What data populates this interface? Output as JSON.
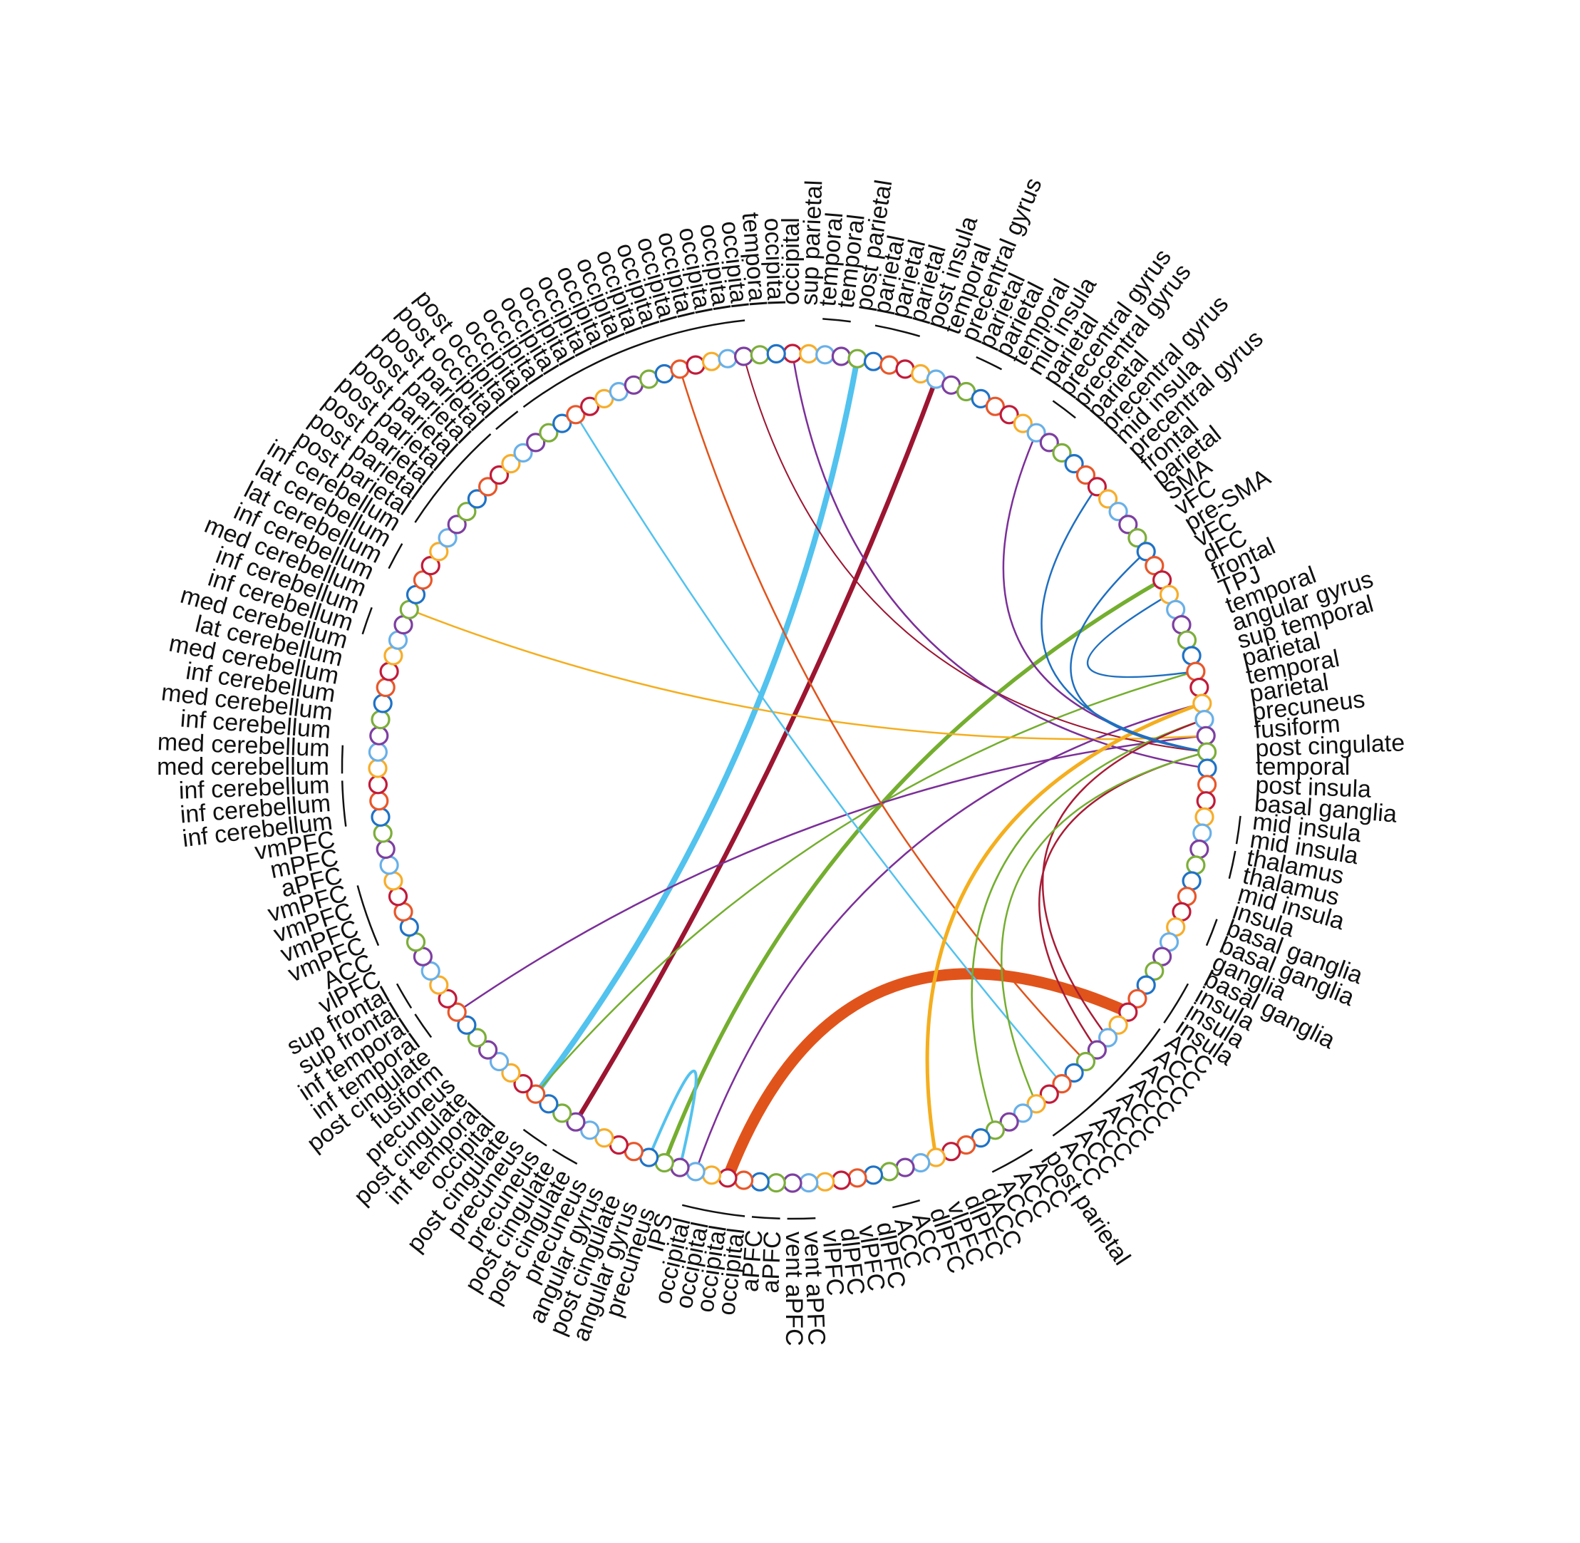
{
  "colors": {
    "node_palette": [
      "#c01b3a",
      "#f7ad2a",
      "#69b0e8",
      "#7d3fa0",
      "#7cae3a",
      "#1f72c6",
      "#e8572a"
    ],
    "link": {
      "cyan": "#52c2ee",
      "darkred": "#9c1531",
      "green": "#74ae2f",
      "orange": "#e0541b",
      "purple": "#7b2f98",
      "yellow": "#f4ae1e",
      "blue": "#1f6fc0",
      "red": "#a71c35"
    }
  },
  "diagram": {
    "type": "circular connectogram",
    "node_count": 160,
    "regions_clockwise_from_top": [
      "occipital",
      "sup parietal",
      "temporal",
      "temporal",
      "post parietal",
      "parietal",
      "parietal",
      "parietal",
      "post insula",
      "temporal",
      "precentral gyrus",
      "parietal",
      "parietal",
      "temporal",
      "mid insula",
      "parietal",
      "precentral gyrus",
      "precentral gyrus",
      "parietal",
      "precentral gyrus",
      "mid insula",
      "precentral gyrus",
      "frontal",
      "parietal",
      "SMA",
      "vFC",
      "pre-SMA",
      "vFC",
      "dFC",
      "frontal",
      "TPJ",
      "temporal",
      "angular gyrus",
      "sup temporal",
      "parietal",
      "temporal",
      "parietal",
      "precuneus",
      "fusiform",
      "post cingulate",
      "temporal",
      "post insula",
      "basal ganglia",
      "mid insula",
      "mid insula",
      "thalamus",
      "thalamus",
      "mid insula",
      "insula",
      "basal ganglia",
      "basal ganglia",
      "ganglia",
      "basal ganglia",
      "insula",
      "insula",
      "insula",
      "ACC",
      "ACC",
      "ACC",
      "ACC",
      "ACC",
      "ACC",
      "ACC",
      "ACC",
      "ACC",
      "post parietal",
      "ACC",
      "ACC",
      "ACC",
      "dACC",
      "dlPFC",
      "vlPFC",
      "dlPFC",
      "ACC",
      "ACC",
      "dlPFC",
      "vlPFC",
      "dlPFC",
      "vlPFC",
      "vent aPFC",
      "vent aPFC",
      "aPFC",
      "aPFC",
      "occipital",
      "occipital",
      "occipital",
      "occipital",
      "IPS",
      "precuneus",
      "angular gyrus",
      "post cingulate",
      "angular gyrus",
      "precuneus",
      "post cingulate",
      "post cingulate",
      "precuneus",
      "precuneus",
      "post cingulate",
      "occipital",
      "inf temporal",
      "post cingulate",
      "precuneus",
      "fusiform",
      "post cingulate",
      "inf temporal",
      "inf temporal",
      "sup frontal",
      "sup frontal",
      "vlPFC",
      "ACC",
      "vmPFC",
      "vmPFC",
      "vmPFC",
      "vmPFC",
      "aPFC",
      "mPFC",
      "vmPFC",
      "inf cerebellum",
      "inf cerebellum",
      "inf cerebellum",
      "med cerebellum",
      "med cerebellum",
      "inf cerebellum",
      "med cerebellum",
      "inf cerebellum",
      "med cerebellum",
      "lat cerebellum",
      "med cerebellum",
      "inf cerebellum",
      "inf cerebellum",
      "med cerebellum",
      "inf cerebellum",
      "lat cerebellum",
      "lat cerebellum",
      "inf cerebellum",
      "post parietal",
      "post parietal",
      "post parietal",
      "post parietal",
      "post parietal",
      "post parietal",
      "post parietal",
      "post occipital",
      "post occipital",
      "occipital",
      "occipital",
      "occipital",
      "occipital",
      "occipital",
      "occipital",
      "occipital",
      "occipital",
      "occipital",
      "occipital",
      "occipital",
      "occipital",
      "occipital",
      "occipital",
      "temporal",
      "occipital"
    ]
  },
  "links": [
    {
      "from": 56,
      "to": 84,
      "weight": 16,
      "color": "orange"
    },
    {
      "from": 4,
      "to": 97,
      "weight": 8,
      "color": "cyan"
    },
    {
      "from": 9,
      "to": 94,
      "weight": 6.5,
      "color": "darkred"
    },
    {
      "from": 28,
      "to": 88,
      "weight": 5.5,
      "color": "green"
    },
    {
      "from": 89,
      "to": 87,
      "weight": 4,
      "color": "cyan"
    },
    {
      "from": 34,
      "to": 97,
      "weight": 2.5,
      "color": "green"
    },
    {
      "from": 36,
      "to": 86,
      "weight": 2.5,
      "color": "purple"
    },
    {
      "from": 38,
      "to": 104,
      "weight": 2.5,
      "color": "purple"
    },
    {
      "from": 38,
      "to": 130,
      "weight": 2.5,
      "color": "yellow"
    },
    {
      "from": 39,
      "to": 157,
      "weight": 2,
      "color": "darkred"
    },
    {
      "from": 153,
      "to": 60,
      "weight": 2.5,
      "color": "orange"
    },
    {
      "from": 146,
      "to": 62,
      "weight": 2.5,
      "color": "cyan"
    },
    {
      "from": 40,
      "to": 0,
      "weight": 2.5,
      "color": "purple"
    },
    {
      "from": 37,
      "to": 67,
      "weight": 2.5,
      "color": "green"
    },
    {
      "from": 36,
      "to": 71,
      "weight": 5,
      "color": "yellow"
    },
    {
      "from": 37,
      "to": 58,
      "weight": 2.5,
      "color": "red"
    },
    {
      "from": 39,
      "to": 59,
      "weight": 2.5,
      "color": "red"
    },
    {
      "from": 39,
      "to": 64,
      "weight": 2.5,
      "color": "green"
    },
    {
      "from": 16,
      "to": 39,
      "weight": 2.5,
      "color": "purple"
    },
    {
      "from": 21,
      "to": 39,
      "weight": 2.5,
      "color": "blue"
    },
    {
      "from": 26,
      "to": 39,
      "weight": 2.5,
      "color": "blue"
    },
    {
      "from": 29,
      "to": 34,
      "weight": 2.5,
      "color": "blue"
    }
  ]
}
